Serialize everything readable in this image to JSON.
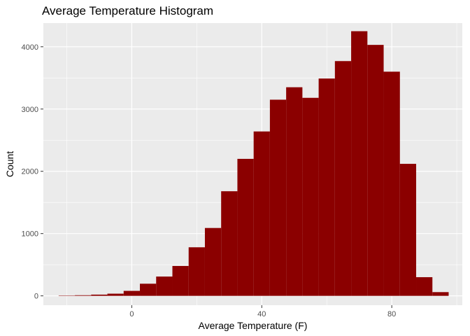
{
  "chart_data": {
    "type": "bar",
    "title": "Average Temperature Histogram",
    "xlabel": "Average Temperature (F)",
    "ylabel": "Count",
    "xlim": [
      -27.2,
      101.7
    ],
    "ylim": [
      -150,
      4380
    ],
    "x_ticks": [
      0,
      40,
      80
    ],
    "y_ticks": [
      0,
      1000,
      2000,
      3000,
      4000
    ],
    "grid": true,
    "bar_color": "#8B0000",
    "panel_background": "#EBEBEB",
    "grid_color": "#FFFFFF",
    "bin_edges": [
      -22.5,
      -17.5,
      -12.5,
      -7.5,
      -2.5,
      2.5,
      7.5,
      12.5,
      17.5,
      22.5,
      27.5,
      32.5,
      37.5,
      42.5,
      47.5,
      52.5,
      57.5,
      62.5,
      67.5,
      72.5,
      77.5,
      82.5,
      87.5,
      92.5,
      97.5
    ],
    "counts": [
      5,
      10,
      20,
      35,
      80,
      195,
      310,
      480,
      780,
      1090,
      1680,
      2200,
      2640,
      3150,
      3350,
      3180,
      3490,
      3770,
      4250,
      4030,
      3600,
      2120,
      300,
      60
    ]
  }
}
